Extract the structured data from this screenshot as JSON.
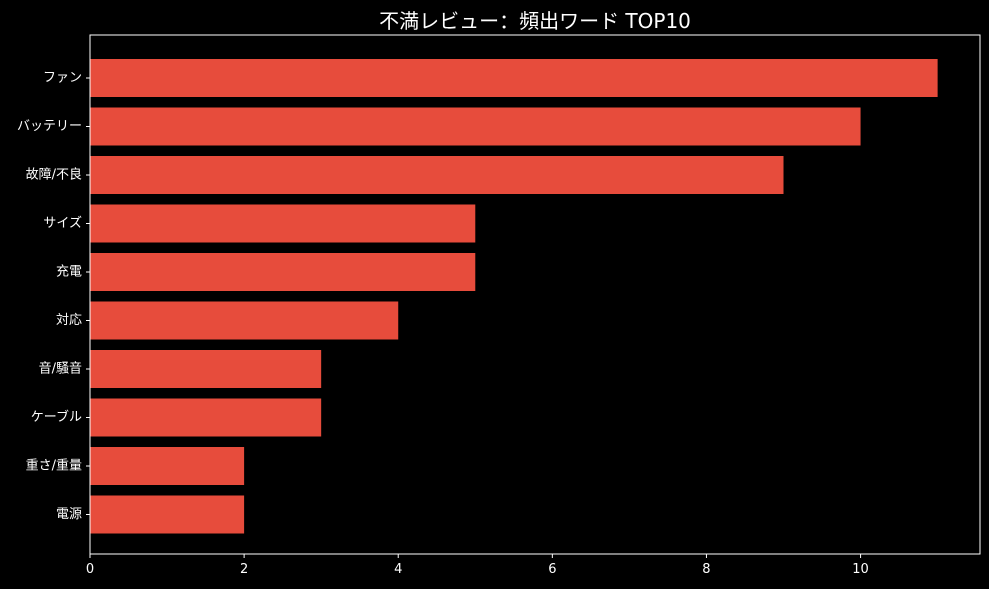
{
  "chart_data": {
    "type": "bar",
    "orientation": "horizontal",
    "title": "不満レビュー：頻出ワード TOP10",
    "xlabel": "",
    "ylabel": "",
    "categories": [
      "ファン",
      "バッテリー",
      "故障/不良",
      "サイズ",
      "充電",
      "対応",
      "音/騒音",
      "ケーブル",
      "重さ/重量",
      "電源"
    ],
    "values": [
      11,
      10,
      9,
      5,
      5,
      4,
      3,
      3,
      2,
      2
    ],
    "xlim": [
      0,
      11.55
    ],
    "xticks": [
      0,
      2,
      4,
      6,
      8,
      10
    ],
    "grid": false,
    "legend": "none",
    "colors": {
      "bar": "#e74c3c",
      "background": "#000000",
      "axis": "#ffffff",
      "text": "#ffffff"
    }
  }
}
